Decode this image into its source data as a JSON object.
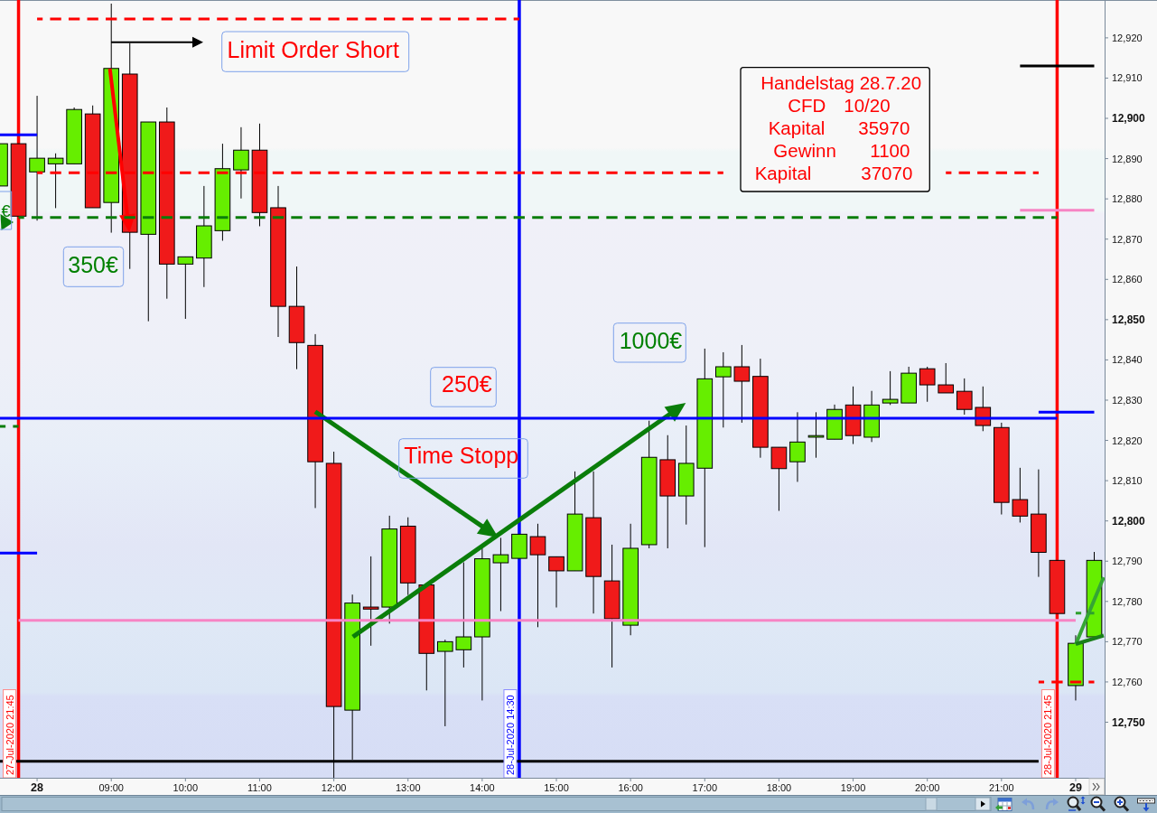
{
  "chart_data": {
    "type": "candlestick",
    "categories": [
      null,
      null,
      "28",
      null,
      null,
      null,
      "09:00",
      null,
      null,
      null,
      "10:00",
      null,
      null,
      null,
      "11:00",
      null,
      null,
      null,
      "12:00",
      null,
      null,
      null,
      "13:00",
      null,
      null,
      null,
      "14:00",
      null,
      null,
      null,
      "15:00",
      null,
      null,
      null,
      "16:00",
      null,
      null,
      null,
      "17:00",
      null,
      null,
      null,
      "18:00",
      null,
      null,
      null,
      "19:00",
      null,
      null,
      null,
      "20:00",
      null,
      null,
      null,
      "21:00",
      null,
      null,
      null,
      "29",
      null
    ],
    "ohlc": [
      [
        12883.2,
        12893.7,
        12883.2,
        12893.7
      ],
      [
        12893.7,
        12893.7,
        12875.7,
        12875.7
      ],
      [
        12886.7,
        12905.6,
        12874.6,
        12890.1
      ],
      [
        12888.7,
        12891.3,
        12877.7,
        12890.1
      ],
      [
        12888.7,
        12902.7,
        12888.7,
        12902.2
      ],
      [
        12901.1,
        12903.2,
        12877.8,
        12877.8
      ],
      [
        12879.1,
        12928.5,
        12871.6,
        12912.4
      ],
      [
        12911.0,
        12918.7,
        12862.6,
        12871.7
      ],
      [
        12871.2,
        12899.1,
        12849.6,
        12899.1
      ],
      [
        12899.1,
        12902.7,
        12855.2,
        12863.8
      ],
      [
        12863.8,
        12865.6,
        12850.2,
        12865.6
      ],
      [
        12865.3,
        12883.2,
        12858.1,
        12873.3
      ],
      [
        12872.1,
        12893.7,
        12869.6,
        12887.5
      ],
      [
        12887.2,
        12897.8,
        12880.1,
        12892.1
      ],
      [
        12892.1,
        12898.7,
        12873.2,
        12876.6
      ],
      [
        12877.8,
        12883.2,
        12845.7,
        12853.3
      ],
      [
        12853.3,
        12863.2,
        12837.7,
        12844.3
      ],
      [
        12843.6,
        12846.4,
        12803.2,
        12814.7
      ],
      [
        12814.3,
        12817.2,
        12736.2,
        12753.9
      ],
      [
        12753.0,
        12781.7,
        12740.7,
        12779.6
      ],
      [
        12778.6,
        12791.2,
        12769.0,
        12778.1
      ],
      [
        12778.6,
        12801.3,
        12774.5,
        12798.0
      ],
      [
        12798.7,
        12800.9,
        12781.6,
        12784.6
      ],
      [
        12784.1,
        12784.1,
        12757.9,
        12767.1
      ],
      [
        12767.6,
        12770.5,
        12749.0,
        12770.0
      ],
      [
        12768.0,
        12789.7,
        12763.6,
        12771.2
      ],
      [
        12771.2,
        12793.3,
        12755.4,
        12790.6
      ],
      [
        12789.6,
        12795.8,
        12777.6,
        12791.6
      ],
      [
        12790.7,
        12796.7,
        12790.7,
        12796.7
      ],
      [
        12796.1,
        12799.3,
        12773.6,
        12791.6
      ],
      [
        12791.1,
        12791.1,
        12778.5,
        12787.6
      ],
      [
        12787.6,
        12812.3,
        12787.6,
        12801.7
      ],
      [
        12800.8,
        12812.3,
        12777.0,
        12786.2
      ],
      [
        12785.1,
        12794.1,
        12763.6,
        12775.7
      ],
      [
        12774.1,
        12799.3,
        12771.6,
        12793.2
      ],
      [
        12794.1,
        12824.9,
        12793.2,
        12815.8
      ],
      [
        12815.2,
        12821.3,
        12793.2,
        12806.2
      ],
      [
        12806.2,
        12823.7,
        12799.1,
        12814.3
      ],
      [
        12813.1,
        12842.8,
        12793.5,
        12835.3
      ],
      [
        12835.8,
        12841.9,
        12823.2,
        12838.3
      ],
      [
        12838.3,
        12843.7,
        12824.4,
        12834.7
      ],
      [
        12835.9,
        12840.3,
        12815.7,
        12818.3
      ],
      [
        12818.3,
        12818.3,
        12802.5,
        12813.0
      ],
      [
        12814.7,
        12827.0,
        12809.7,
        12819.6
      ],
      [
        12820.8,
        12827.0,
        12815.7,
        12821.2
      ],
      [
        12820.3,
        12828.9,
        12820.3,
        12827.7
      ],
      [
        12828.8,
        12833.4,
        12819.1,
        12821.2
      ],
      [
        12820.8,
        12832.3,
        12819.6,
        12828.8
      ],
      [
        12829.3,
        12837.2,
        12828.8,
        12830.2
      ],
      [
        12829.3,
        12838.3,
        12829.3,
        12836.7
      ],
      [
        12837.8,
        12838.3,
        12829.6,
        12833.8
      ],
      [
        12833.8,
        12839.2,
        12831.8,
        12831.8
      ],
      [
        12832.2,
        12835.4,
        12826.4,
        12827.7
      ],
      [
        12828.2,
        12833.4,
        12822.3,
        12823.7
      ],
      [
        12823.2,
        12824.4,
        12801.6,
        12804.6
      ],
      [
        12805.3,
        12813.2,
        12799.6,
        12801.2
      ],
      [
        12801.7,
        12812.8,
        12786.1,
        12792.2
      ],
      [
        12790.2,
        12790.2,
        12777.0,
        12777.0
      ],
      [
        12759.1,
        12771.6,
        12755.4,
        12769.6
      ],
      [
        12771.2,
        12792.3,
        12771.2,
        12790.2
      ]
    ],
    "colors": [
      "#66ee00",
      "#f01a1a",
      "#66ee00",
      "#66ee00",
      "#66ee00",
      "#f01a1a",
      "#66ee00",
      "#f01a1a",
      "#66ee00",
      "#f01a1a",
      "#66ee00",
      "#66ee00",
      "#66ee00",
      "#66ee00",
      "#f01a1a",
      "#f01a1a",
      "#f01a1a",
      "#f01a1a",
      "#f01a1a",
      "#66ee00",
      "#f01a1a",
      "#66ee00",
      "#f01a1a",
      "#f01a1a",
      "#66ee00",
      "#66ee00",
      "#66ee00",
      "#66ee00",
      "#66ee00",
      "#f01a1a",
      "#f01a1a",
      "#66ee00",
      "#f01a1a",
      "#f01a1a",
      "#66ee00",
      "#66ee00",
      "#f01a1a",
      "#66ee00",
      "#66ee00",
      "#66ee00",
      "#f01a1a",
      "#f01a1a",
      "#f01a1a",
      "#66ee00",
      "#66ee00",
      "#66ee00",
      "#f01a1a",
      "#66ee00",
      "#66ee00",
      "#66ee00",
      "#f01a1a",
      "#f01a1a",
      "#f01a1a",
      "#f01a1a",
      "#f01a1a",
      "#f01a1a",
      "#f01a1a",
      "#f01a1a",
      "#66ee00",
      "#66ee00"
    ],
    "series": [
      {
        "type": "line",
        "color": "#ff0000",
        "line_style": "dashed",
        "values": [
          null,
          null,
          12924.7,
          12924.7,
          12924.7,
          12924.7,
          12924.7,
          12924.7,
          12924.7,
          12924.7,
          12924.7,
          12924.7,
          12924.7,
          12924.7,
          12924.7,
          12924.7,
          12924.7,
          12924.7,
          12924.7,
          12924.7,
          12924.7,
          12924.7,
          12924.7,
          12924.7,
          12924.7,
          12924.7,
          12924.7,
          12924.7,
          12924.7,
          null,
          null,
          null,
          null,
          null,
          null,
          null,
          null,
          null,
          null,
          null,
          null,
          null,
          null,
          null,
          null,
          null,
          null,
          null,
          null,
          null,
          null,
          null,
          null,
          null,
          null,
          null,
          null,
          null,
          null,
          null
        ]
      },
      {
        "type": "line",
        "color": "#ff0000",
        "line_style": "dashed",
        "values": [
          null,
          null,
          12886.5,
          12886.5,
          12886.5,
          12886.5,
          12886.5,
          12886.5,
          12886.5,
          12886.5,
          12886.5,
          12886.5,
          12886.5,
          12886.5,
          12886.5,
          12886.5,
          12886.5,
          12886.5,
          12886.5,
          12886.5,
          12886.5,
          12886.5,
          12886.5,
          12886.5,
          12886.5,
          12886.5,
          12886.5,
          12886.5,
          12886.5,
          12886.5,
          12886.5,
          12886.5,
          12886.5,
          12886.5,
          12886.5,
          12886.5,
          12886.5,
          12886.5,
          12886.5,
          12886.5,
          null,
          null,
          null,
          null,
          null,
          null,
          null,
          null,
          null,
          null,
          null,
          null,
          null,
          null,
          null,
          null,
          null,
          null,
          null,
          null
        ]
      },
      {
        "type": "line",
        "color": "#ff0000",
        "line_style": "dashed",
        "values": [
          null,
          null,
          null,
          null,
          null,
          null,
          null,
          null,
          null,
          null,
          null,
          null,
          null,
          null,
          null,
          null,
          null,
          null,
          null,
          null,
          null,
          null,
          null,
          null,
          null,
          null,
          null,
          null,
          null,
          null,
          null,
          null,
          null,
          null,
          null,
          null,
          null,
          null,
          null,
          null,
          null,
          null,
          null,
          null,
          null,
          null,
          null,
          null,
          null,
          null,
          null,
          12886.5,
          12886.5,
          12886.5,
          12886.5,
          12886.5,
          12886.5,
          null,
          null,
          null
        ]
      },
      {
        "type": "line",
        "color": "#0a7d0a",
        "line_style": "dashed",
        "values": [
          null,
          12875.4,
          12875.4,
          12875.4,
          12875.4,
          12875.4,
          12875.4,
          12875.4,
          12875.4,
          12875.4,
          12875.4,
          12875.4,
          12875.4,
          12875.4,
          12875.4,
          12875.4,
          12875.4,
          12875.4,
          12875.4,
          12875.4,
          12875.4,
          12875.4,
          12875.4,
          12875.4,
          12875.4,
          12875.4,
          12875.4,
          12875.4,
          12875.4,
          12875.4,
          12875.4,
          12875.4,
          12875.4,
          12875.4,
          12875.4,
          12875.4,
          12875.4,
          12875.4,
          12875.4,
          12875.4,
          12875.4,
          12875.4,
          12875.4,
          12875.4,
          12875.4,
          12875.4,
          12875.4,
          12875.4,
          12875.4,
          12875.4,
          12875.4,
          12875.4,
          12875.4,
          12875.4,
          12875.4,
          12875.4,
          12875.4,
          12875.4,
          null,
          null
        ]
      },
      {
        "type": "line",
        "color": "#0000ff",
        "values": [
          12895.9,
          12895.9,
          12895.9,
          null,
          null,
          null,
          null,
          null,
          null,
          null,
          null,
          null,
          null,
          null,
          null,
          null,
          null,
          null,
          null,
          null,
          null,
          null,
          null,
          null,
          null,
          null,
          null,
          null,
          null,
          null,
          null,
          null,
          null,
          null,
          null,
          null,
          null,
          null,
          null,
          null,
          null,
          null,
          null,
          null,
          null,
          null,
          null,
          null,
          null,
          null,
          null,
          null,
          null,
          null,
          null,
          null,
          null,
          null,
          null,
          null
        ]
      },
      {
        "type": "line",
        "color": "#0000ff",
        "values": [
          12792.0,
          12792.0,
          12792.0,
          null,
          null,
          null,
          null,
          null,
          null,
          null,
          null,
          null,
          null,
          null,
          null,
          null,
          null,
          null,
          null,
          null,
          null,
          null,
          null,
          null,
          null,
          null,
          null,
          null,
          null,
          null,
          null,
          null,
          null,
          null,
          null,
          null,
          null,
          null,
          null,
          null,
          null,
          null,
          null,
          null,
          null,
          null,
          null,
          null,
          null,
          null,
          null,
          null,
          null,
          null,
          null,
          null,
          null,
          null,
          null,
          null
        ]
      },
      {
        "type": "line",
        "color": "#0a7d0a",
        "line_style": "dashed",
        "values": [
          12823.5,
          12823.5,
          null,
          null,
          null,
          null,
          null,
          null,
          null,
          null,
          null,
          null,
          null,
          null,
          null,
          null,
          null,
          null,
          null,
          null,
          null,
          null,
          null,
          null,
          null,
          null,
          null,
          null,
          null,
          null,
          null,
          null,
          null,
          null,
          null,
          null,
          null,
          null,
          null,
          null,
          null,
          null,
          null,
          null,
          null,
          null,
          null,
          null,
          null,
          null,
          null,
          null,
          null,
          null,
          null,
          null,
          null,
          null,
          null,
          null
        ]
      },
      {
        "type": "line",
        "color": "#0000ff",
        "values": [
          12825.5,
          12825.5,
          12825.5,
          12825.5,
          12825.5,
          12825.5,
          12825.5,
          12825.5,
          12825.5,
          12825.5,
          12825.5,
          12825.5,
          12825.5,
          12825.5,
          12825.5,
          12825.5,
          12825.5,
          12825.5,
          12825.5,
          12825.5,
          12825.5,
          12825.5,
          12825.5,
          12825.5,
          12825.5,
          12825.5,
          12825.5,
          12825.5,
          12825.5,
          12825.5,
          12825.5,
          12825.5,
          12825.5,
          12825.5,
          12825.5,
          12825.5,
          12825.5,
          12825.5,
          12825.5,
          12825.5,
          12825.5,
          12825.5,
          12825.5,
          12825.5,
          12825.5,
          12825.5,
          12825.5,
          12825.5,
          12825.5,
          12825.5,
          12825.5,
          12825.5,
          12825.5,
          12825.5,
          12825.5,
          12825.5,
          12825.5,
          12825.5,
          null,
          null
        ]
      },
      {
        "type": "line",
        "color": "#0000ff",
        "values": [
          null,
          null,
          null,
          null,
          null,
          null,
          null,
          null,
          null,
          null,
          null,
          null,
          null,
          null,
          null,
          null,
          null,
          null,
          null,
          null,
          null,
          null,
          null,
          null,
          null,
          null,
          null,
          null,
          null,
          null,
          null,
          null,
          null,
          null,
          null,
          null,
          null,
          null,
          null,
          null,
          null,
          null,
          null,
          null,
          null,
          null,
          null,
          null,
          null,
          null,
          null,
          null,
          null,
          null,
          null,
          null,
          12827.0,
          12827.0,
          12827.0,
          12827.0
        ]
      },
      {
        "type": "line",
        "color": "#f784c4",
        "values": [
          null,
          12775.3,
          12775.3,
          12775.3,
          12775.3,
          12775.3,
          12775.3,
          12775.3,
          12775.3,
          12775.3,
          12775.3,
          12775.3,
          12775.3,
          12775.3,
          12775.3,
          12775.3,
          12775.3,
          12775.3,
          12775.3,
          12775.3,
          12775.3,
          12775.3,
          12775.3,
          12775.3,
          12775.3,
          12775.3,
          12775.3,
          12775.3,
          12775.3,
          12775.3,
          12775.3,
          12775.3,
          12775.3,
          12775.3,
          12775.3,
          12775.3,
          12775.3,
          12775.3,
          12775.3,
          12775.3,
          12775.3,
          12775.3,
          12775.3,
          12775.3,
          12775.3,
          12775.3,
          12775.3,
          12775.3,
          12775.3,
          12775.3,
          12775.3,
          12775.3,
          12775.3,
          12775.3,
          12775.3,
          12775.3,
          12775.3,
          12775.3,
          12775.3,
          null
        ]
      },
      {
        "type": "line",
        "color": "#f784c4",
        "values": [
          null,
          null,
          null,
          null,
          null,
          null,
          null,
          null,
          null,
          null,
          null,
          null,
          null,
          null,
          null,
          null,
          null,
          null,
          null,
          null,
          null,
          null,
          null,
          null,
          null,
          null,
          null,
          null,
          null,
          null,
          null,
          null,
          null,
          null,
          null,
          null,
          null,
          null,
          null,
          null,
          null,
          null,
          null,
          null,
          null,
          null,
          null,
          null,
          null,
          null,
          null,
          null,
          null,
          null,
          null,
          12877.2,
          12877.2,
          12877.2,
          12877.2,
          12877.2
        ]
      },
      {
        "type": "line",
        "color": "#000000",
        "values": [
          12740.3,
          12740.3,
          12740.3,
          12740.3,
          12740.3,
          12740.3,
          12740.3,
          12740.3,
          12740.3,
          12740.3,
          12740.3,
          12740.3,
          12740.3,
          12740.3,
          12740.3,
          12740.3,
          12740.3,
          12740.3,
          12740.3,
          12740.3,
          12740.3,
          12740.3,
          12740.3,
          12740.3,
          12740.3,
          12740.3,
          12740.3,
          12740.3,
          12740.3,
          12740.3,
          12740.3,
          12740.3,
          12740.3,
          12740.3,
          12740.3,
          12740.3,
          12740.3,
          12740.3,
          12740.3,
          12740.3,
          12740.3,
          12740.3,
          12740.3,
          12740.3,
          12740.3,
          12740.3,
          12740.3,
          12740.3,
          12740.3,
          12740.3,
          12740.3,
          12740.3,
          12740.3,
          12740.3,
          12740.3,
          12740.3,
          12740.3,
          null,
          null,
          null
        ]
      },
      {
        "type": "line",
        "color": "#000000",
        "values": [
          null,
          null,
          null,
          null,
          null,
          null,
          null,
          null,
          null,
          null,
          null,
          null,
          null,
          null,
          null,
          null,
          null,
          null,
          null,
          null,
          null,
          null,
          null,
          null,
          null,
          null,
          null,
          null,
          null,
          null,
          null,
          null,
          null,
          null,
          null,
          null,
          null,
          null,
          null,
          null,
          null,
          null,
          null,
          null,
          null,
          null,
          null,
          null,
          null,
          null,
          null,
          null,
          null,
          null,
          null,
          12913.0,
          12913.0,
          12913.0,
          12913.0,
          12913.0
        ]
      },
      {
        "type": "line",
        "color": "#ff0000",
        "line_style": "dashed",
        "values": [
          null,
          null,
          null,
          null,
          null,
          null,
          null,
          null,
          null,
          null,
          null,
          null,
          null,
          null,
          null,
          null,
          null,
          null,
          null,
          null,
          null,
          null,
          null,
          null,
          null,
          null,
          null,
          null,
          null,
          null,
          null,
          null,
          null,
          null,
          null,
          null,
          null,
          null,
          null,
          null,
          null,
          null,
          null,
          null,
          null,
          null,
          null,
          null,
          null,
          null,
          null,
          null,
          null,
          null,
          null,
          null,
          12760.0,
          12760.0,
          12760.0,
          12760.0
        ]
      },
      {
        "type": "line",
        "color": "#2ea02e",
        "line_style": "dashed",
        "values": [
          null,
          null,
          null,
          null,
          null,
          null,
          null,
          null,
          null,
          null,
          null,
          null,
          null,
          null,
          null,
          null,
          null,
          null,
          null,
          null,
          null,
          null,
          null,
          null,
          null,
          null,
          null,
          null,
          null,
          null,
          null,
          null,
          null,
          null,
          null,
          null,
          null,
          null,
          null,
          null,
          null,
          null,
          null,
          null,
          null,
          null,
          null,
          null,
          null,
          null,
          null,
          null,
          null,
          null,
          null,
          null,
          null,
          null,
          12777.1,
          12777.1
        ]
      }
    ],
    "ylim": [
      12736.2,
      12929.4
    ],
    "yticks": [
      {
        "value": 12750,
        "label": "12,750"
      },
      {
        "value": 12760,
        "label": "12,760"
      },
      {
        "value": 12770,
        "label": "12,770"
      },
      {
        "value": 12780,
        "label": "12,780"
      },
      {
        "value": 12790,
        "label": "12,790"
      },
      {
        "value": 12800,
        "label": "12,800"
      },
      {
        "value": 12810,
        "label": "12,810"
      },
      {
        "value": 12820,
        "label": "12,820"
      },
      {
        "value": 12830,
        "label": "12,830"
      },
      {
        "value": 12840,
        "label": "12,840"
      },
      {
        "value": 12850,
        "label": "12,850"
      },
      {
        "value": 12860,
        "label": "12,860"
      },
      {
        "value": 12870,
        "label": "12,870"
      },
      {
        "value": 12880,
        "label": "12,880"
      },
      {
        "value": 12890,
        "label": "12,890"
      },
      {
        "value": 12900,
        "label": "12,900"
      },
      {
        "value": 12910,
        "label": "12,910"
      },
      {
        "value": 12920,
        "label": "12,920"
      }
    ],
    "annotations": [
      "Limit Order Short",
      "350€",
      "250€",
      "Time Stopp",
      "1000€",
      "Handelstag 28.7.20",
      "CFD",
      "10/20",
      "Kapital",
      "35970",
      "Gewinn",
      "1100",
      "Kapital",
      "37070",
      "€",
      "27-Jul-2020 21:45",
      "28-Jul-2020 14:30",
      "28-Jul-2020 21:45"
    ]
  }
}
